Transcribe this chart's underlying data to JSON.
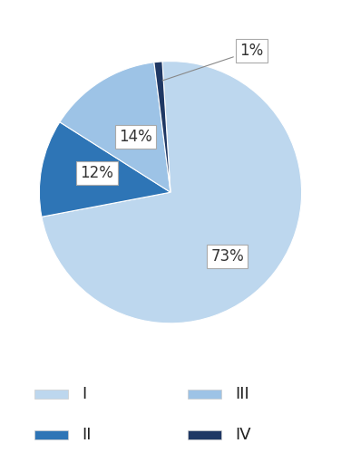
{
  "labels": [
    "I",
    "II",
    "III",
    "IV"
  ],
  "values": [
    73,
    12,
    14,
    1
  ],
  "colors": [
    "#bdd7ee",
    "#2e75b6",
    "#9dc3e6",
    "#1f3864"
  ],
  "pct_labels": [
    "73%",
    "12%",
    "14%",
    "1%"
  ],
  "legend_colors": [
    "#bdd7ee",
    "#2e75b6",
    "#9dc3e6",
    "#1f3864"
  ],
  "bg_color": "#ffffff",
  "label_fontsize": 12,
  "legend_fontsize": 13,
  "startangle": 93.6
}
